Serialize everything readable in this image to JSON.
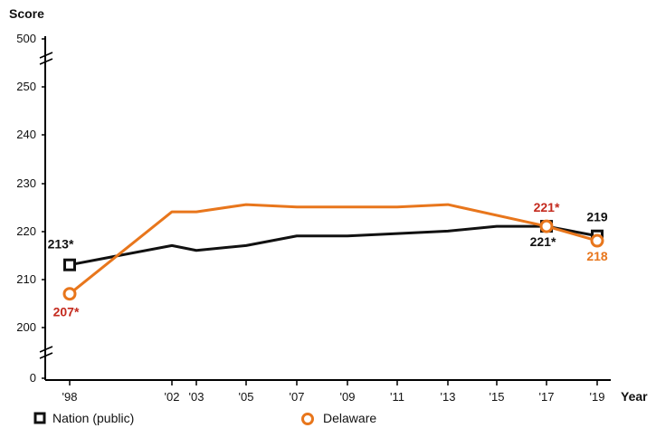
{
  "chart_data": {
    "type": "line",
    "ylabel": "Score",
    "xlabel": "Year",
    "y_ticks": [
      "0",
      "200",
      "210",
      "220",
      "230",
      "240",
      "250",
      "500"
    ],
    "x_ticks": [
      "'98",
      "'02",
      "'03",
      "'05",
      "'07",
      "'09",
      "'11",
      "'13",
      "'15",
      "'17",
      "'19"
    ],
    "x": [
      1998,
      2002,
      2003,
      2005,
      2007,
      2009,
      2011,
      2013,
      2015,
      2017,
      2019
    ],
    "y_axis_break": true,
    "series": [
      {
        "name": "Nation (public)",
        "color": "#111111",
        "marker": "square",
        "values": [
          213,
          217,
          216,
          217,
          219,
          219,
          219.5,
          220,
          221,
          221,
          219
        ]
      },
      {
        "name": "Delaware",
        "color": "#e8761c",
        "marker": "circle",
        "values": [
          207,
          224,
          224,
          225.5,
          225,
          225,
          225,
          225.5,
          null,
          221,
          218
        ]
      }
    ],
    "annotations": [
      {
        "series": 0,
        "x": 1998,
        "text": "213*"
      },
      {
        "series": 0,
        "x": 2017,
        "text": "221*"
      },
      {
        "series": 0,
        "x": 2019,
        "text": "219"
      },
      {
        "series": 1,
        "x": 1998,
        "text": "207*"
      },
      {
        "series": 1,
        "x": 2017,
        "text": "221*"
      },
      {
        "series": 1,
        "x": 2019,
        "text": "218"
      }
    ]
  },
  "colors": {
    "nation": "#111111",
    "delaware": "#e8761c",
    "delaware_label": "#c42a1e"
  }
}
